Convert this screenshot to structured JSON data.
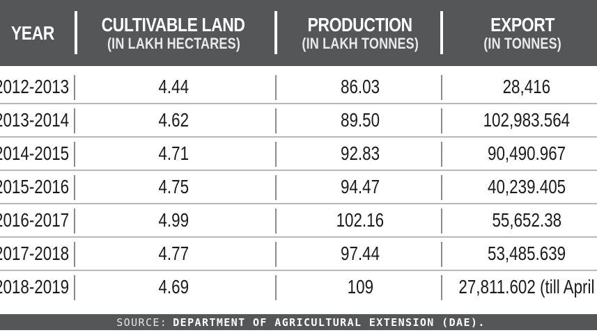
{
  "table": {
    "headers": {
      "year": "YEAR",
      "land": {
        "title": "CULTIVABLE LAND",
        "unit": "(IN LAKH HECTARES)"
      },
      "production": {
        "title": "PRODUCTION",
        "unit": "(IN LAKH TONNES)"
      },
      "export": {
        "title": "EXPORT",
        "unit": "(IN TONNES)"
      }
    },
    "rows": [
      {
        "year": "2012-2013",
        "land": "4.44",
        "production": "86.03",
        "export": "28,416"
      },
      {
        "year": "2013-2014",
        "land": "4.62",
        "production": "89.50",
        "export": "102,983.564"
      },
      {
        "year": "2014-2015",
        "land": "4.71",
        "production": "92.83",
        "export": "90,490.967"
      },
      {
        "year": "2015-2016",
        "land": "4.75",
        "production": "94.47",
        "export": "40,239.405"
      },
      {
        "year": "2016-2017",
        "land": "4.99",
        "production": "102.16",
        "export": "55,652.38"
      },
      {
        "year": "2017-2018",
        "land": "4.77",
        "production": "97.44",
        "export": "53,485.639"
      },
      {
        "year": "2018-2019",
        "land": "4.69",
        "production": "109",
        "export": "27,811.602 (till April"
      }
    ]
  },
  "footer": {
    "label": "SOURCE:",
    "source": "DEPARTMENT OF AGRICULTURAL EXTENSION (DAE)."
  },
  "colors": {
    "header_bg": "#555658",
    "header_text": "#ffffff",
    "row_text": "#1a1a1a",
    "rule": "#b8b8b8"
  }
}
